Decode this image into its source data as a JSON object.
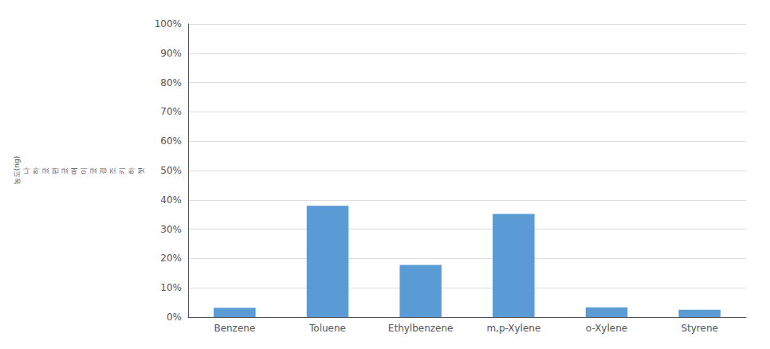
{
  "chart_data": {
    "type": "bar",
    "ylabel": "농도(ng)\n나\n하\n궀\n편\n궀\n매\n이\n궀\n경\n조\n키\n하\n잿",
    "categories": [
      "Benzene",
      "Toluene",
      "Ethylbenzene",
      "m,p-Xylene",
      "o-Xylene",
      "Styrene"
    ],
    "values": [
      3.2,
      38.0,
      17.8,
      35.2,
      3.3,
      2.5
    ],
    "color": "#5b9bd5",
    "ylim": [
      0,
      100
    ],
    "yticks": [
      {
        "value": 0,
        "label": "0%"
      },
      {
        "value": 10,
        "label": "10%"
      },
      {
        "value": 20,
        "label": "20%"
      },
      {
        "value": 30,
        "label": "30%"
      },
      {
        "value": 40,
        "label": "40%"
      },
      {
        "value": 50,
        "label": "50%"
      },
      {
        "value": 60,
        "label": "60%"
      },
      {
        "value": 70,
        "label": "70%"
      },
      {
        "value": 80,
        "label": "80%"
      },
      {
        "value": 90,
        "label": "90%"
      },
      {
        "value": 100,
        "label": "100%"
      }
    ],
    "grid": true
  }
}
